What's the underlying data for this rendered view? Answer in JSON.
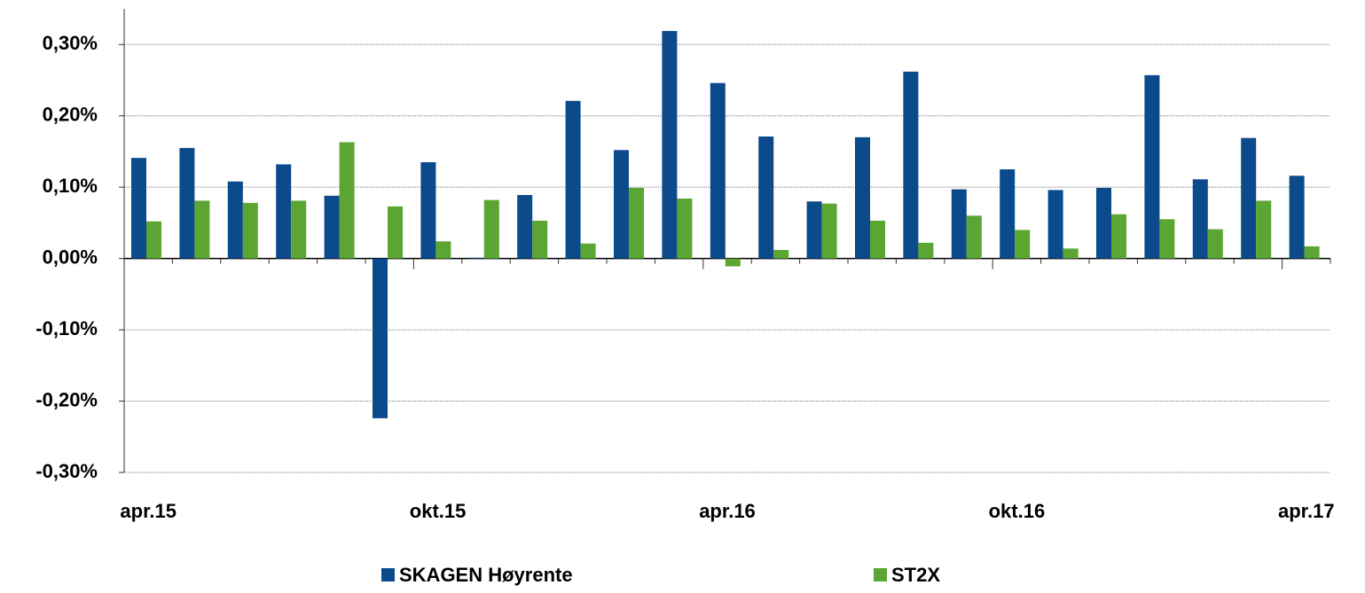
{
  "chart_data": {
    "type": "bar",
    "categories": [
      "apr.15",
      null,
      null,
      null,
      null,
      null,
      "okt.15",
      null,
      null,
      null,
      null,
      null,
      "apr.16",
      null,
      null,
      null,
      null,
      null,
      "okt.16",
      null,
      null,
      null,
      null,
      null,
      "apr.17"
    ],
    "series": [
      {
        "name": "SKAGEN Høyrente",
        "color": "#0b4a8b",
        "values": [
          0.141,
          0.155,
          0.108,
          0.132,
          0.088,
          -0.224,
          0.135,
          0.001,
          0.089,
          0.221,
          0.152,
          0.319,
          0.246,
          0.171,
          0.08,
          0.17,
          0.262,
          0.097,
          0.125,
          0.096,
          0.099,
          0.257,
          0.111,
          0.169,
          0.116
        ]
      },
      {
        "name": "ST2X",
        "color": "#5ba532",
        "values": [
          0.052,
          0.081,
          0.078,
          0.081,
          0.163,
          0.073,
          0.024,
          0.082,
          0.053,
          0.021,
          0.099,
          0.084,
          -0.011,
          0.012,
          0.077,
          0.053,
          0.022,
          0.06,
          0.04,
          0.014,
          0.062,
          0.055,
          0.041,
          0.081,
          0.017
        ]
      }
    ],
    "ylim": [
      -0.3,
      0.35
    ],
    "yticks": [
      {
        "value": -0.3,
        "label": "-0,30%"
      },
      {
        "value": -0.2,
        "label": "-0,20%"
      },
      {
        "value": -0.1,
        "label": "-0,10%"
      },
      {
        "value": 0,
        "label": "0,00%"
      },
      {
        "value": 0.1,
        "label": "0,10%"
      },
      {
        "value": 0.2,
        "label": "0,20%"
      },
      {
        "value": 0.3,
        "label": "0,30%"
      }
    ],
    "grid": true,
    "legend": "bottom"
  }
}
